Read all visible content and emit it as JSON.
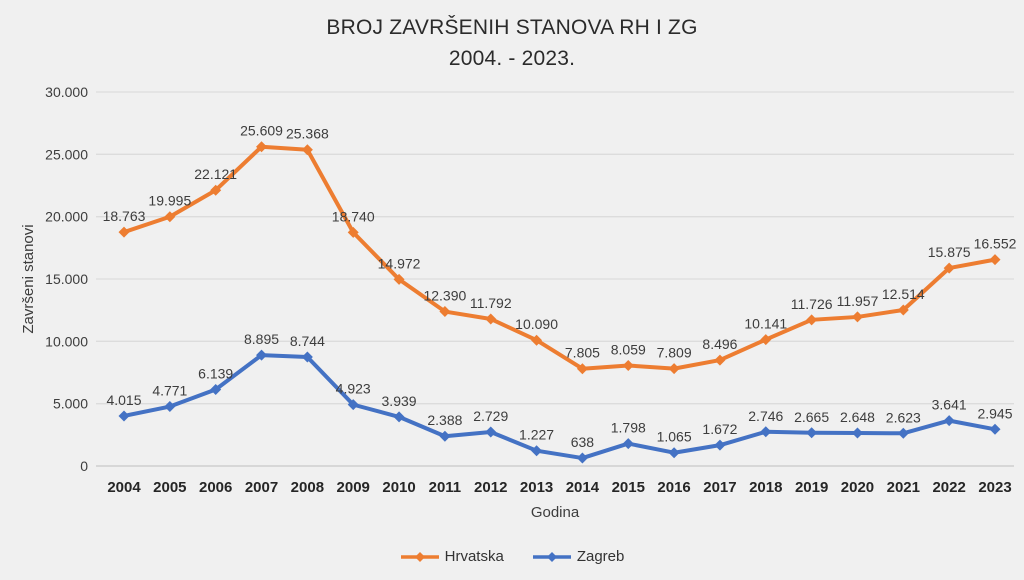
{
  "title": {
    "line1": "BROJ ZAVRŠENIH STANOVA RH I ZG",
    "line2": "2004. - 2023."
  },
  "chart_data": {
    "type": "line",
    "title": "BROJ ZAVRŠENIH STANOVA RH I ZG 2004. - 2023.",
    "xlabel": "Godina",
    "ylabel": "Završeni stanovi",
    "categories": [
      "2004",
      "2005",
      "2006",
      "2007",
      "2008",
      "2009",
      "2010",
      "2011",
      "2012",
      "2013",
      "2014",
      "2015",
      "2016",
      "2017",
      "2018",
      "2019",
      "2020",
      "2021",
      "2022",
      "2023"
    ],
    "series": [
      {
        "name": "Hrvatska",
        "color": "#ED7D31",
        "values": [
          18763,
          19995,
          22121,
          25609,
          25368,
          18740,
          14972,
          12390,
          11792,
          10090,
          7805,
          8059,
          7809,
          8496,
          10141,
          11726,
          11957,
          12514,
          15875,
          16552
        ],
        "labels": [
          "18.763",
          "19.995",
          "22.121",
          "25.609",
          "25.368",
          "18.740",
          "14.972",
          "12.390",
          "11.792",
          "10.090",
          "7.805",
          "8.059",
          "7.809",
          "8.496",
          "10.141",
          "11.726",
          "11.957",
          "12.514",
          "15.875",
          "16.552"
        ]
      },
      {
        "name": "Zagreb",
        "color": "#4472C4",
        "values": [
          4015,
          4771,
          6139,
          8895,
          8744,
          4923,
          3939,
          2388,
          2729,
          1227,
          638,
          1798,
          1065,
          1672,
          2746,
          2665,
          2648,
          2623,
          3641,
          2945
        ],
        "labels": [
          "4.015",
          "4.771",
          "6.139",
          "8.895",
          "8.744",
          "4.923",
          "3.939",
          "2.388",
          "2.729",
          "1.227",
          "638",
          "1.798",
          "1.065",
          "1.672",
          "2.746",
          "2.665",
          "2.648",
          "2.623",
          "3.641",
          "2.945"
        ]
      }
    ],
    "ylim": [
      0,
      30000
    ],
    "ytick_interval": 5000,
    "ytick_labels": [
      "0",
      "5.000",
      "10.000",
      "15.000",
      "20.000",
      "25.000",
      "30.000"
    ],
    "grid": true,
    "legend_position": "bottom",
    "marker": "diamond"
  },
  "colors": {
    "background": "#F0F0F0",
    "gridline": "#DCDCDC",
    "axis_line": "#C8C8C8",
    "tick_text": "#3d3d3d",
    "category_text": "#262626",
    "title_text": "#2b2b2b"
  }
}
